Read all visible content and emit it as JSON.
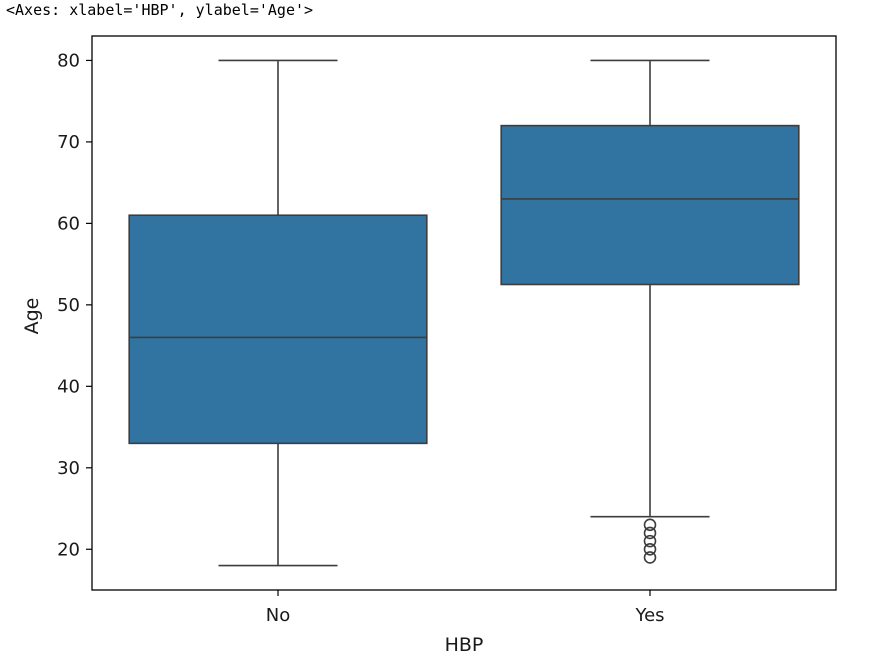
{
  "output_repr": "<Axes: xlabel='HBP', ylabel='Age'>",
  "chart_data": {
    "type": "box",
    "title": "",
    "xlabel": "HBP",
    "ylabel": "Age",
    "categories": [
      "No",
      "Yes"
    ],
    "ylim": [
      15,
      83
    ],
    "yticks": [
      20,
      30,
      40,
      50,
      60,
      70,
      80
    ],
    "grid": false,
    "box_color": "#3274a1",
    "line_color": "#3d3d3d",
    "boxes": [
      {
        "category": "No",
        "whisker_low": 18,
        "q1": 33,
        "median": 46,
        "q3": 61,
        "whisker_high": 80,
        "outliers": []
      },
      {
        "category": "Yes",
        "whisker_low": 24,
        "q1": 52.5,
        "median": 63,
        "q3": 72,
        "whisker_high": 80,
        "outliers": [
          19,
          20,
          21,
          22,
          23
        ]
      }
    ]
  }
}
